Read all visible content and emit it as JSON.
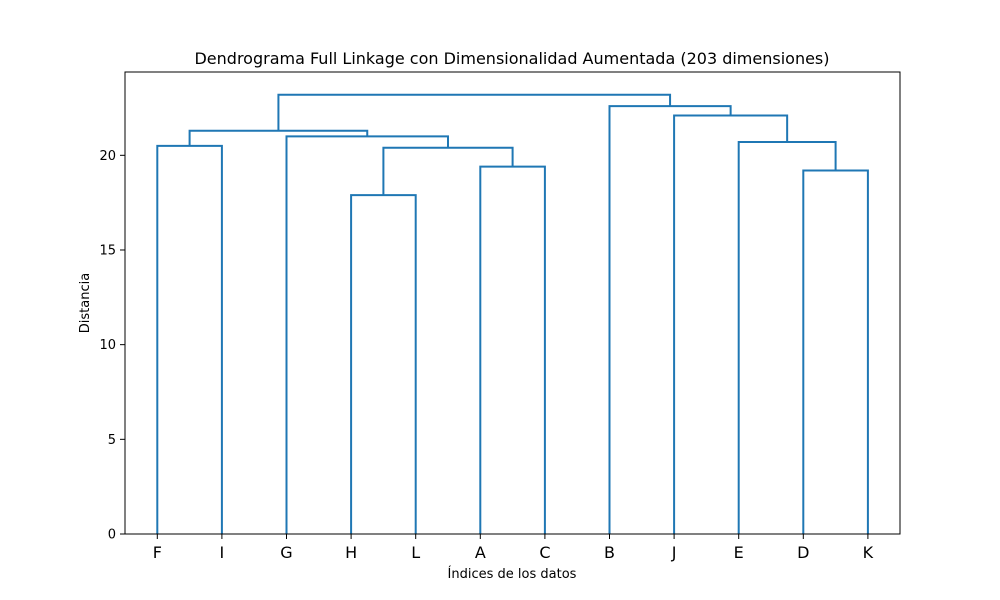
{
  "chart_data": {
    "type": "dendrogram",
    "title": "Dendrograma Full Linkage con Dimensionalidad Aumentada (203 dimensiones)",
    "xlabel": "Índices de los datos",
    "ylabel": "Distancia",
    "ylim": [
      0,
      24.4
    ],
    "yticks": [
      0,
      5,
      10,
      15,
      20
    ],
    "leaves": [
      "F",
      "I",
      "G",
      "H",
      "L",
      "A",
      "C",
      "B",
      "J",
      "E",
      "D",
      "K"
    ],
    "merges": [
      {
        "left": "leaf:H",
        "right": "leaf:L",
        "height": 17.9
      },
      {
        "left": "leaf:D",
        "right": "leaf:K",
        "height": 19.2
      },
      {
        "left": "leaf:A",
        "right": "leaf:C",
        "height": 19.4
      },
      {
        "left": "merge:0",
        "right": "merge:2",
        "height": 20.4
      },
      {
        "left": "leaf:F",
        "right": "leaf:I",
        "height": 20.5
      },
      {
        "left": "leaf:E",
        "right": "merge:1",
        "height": 20.7
      },
      {
        "left": "leaf:G",
        "right": "merge:3",
        "height": 21.0
      },
      {
        "left": "leaf:J",
        "right": "merge:5",
        "height": 22.1
      },
      {
        "left": "merge:4",
        "right": "merge:6",
        "height": 21.3
      },
      {
        "left": "leaf:B",
        "right": "merge:7",
        "height": 22.6
      },
      {
        "left": "merge:8",
        "right": "merge:9",
        "height": 23.2
      }
    ],
    "color": "#1f77b4",
    "grid": false
  }
}
